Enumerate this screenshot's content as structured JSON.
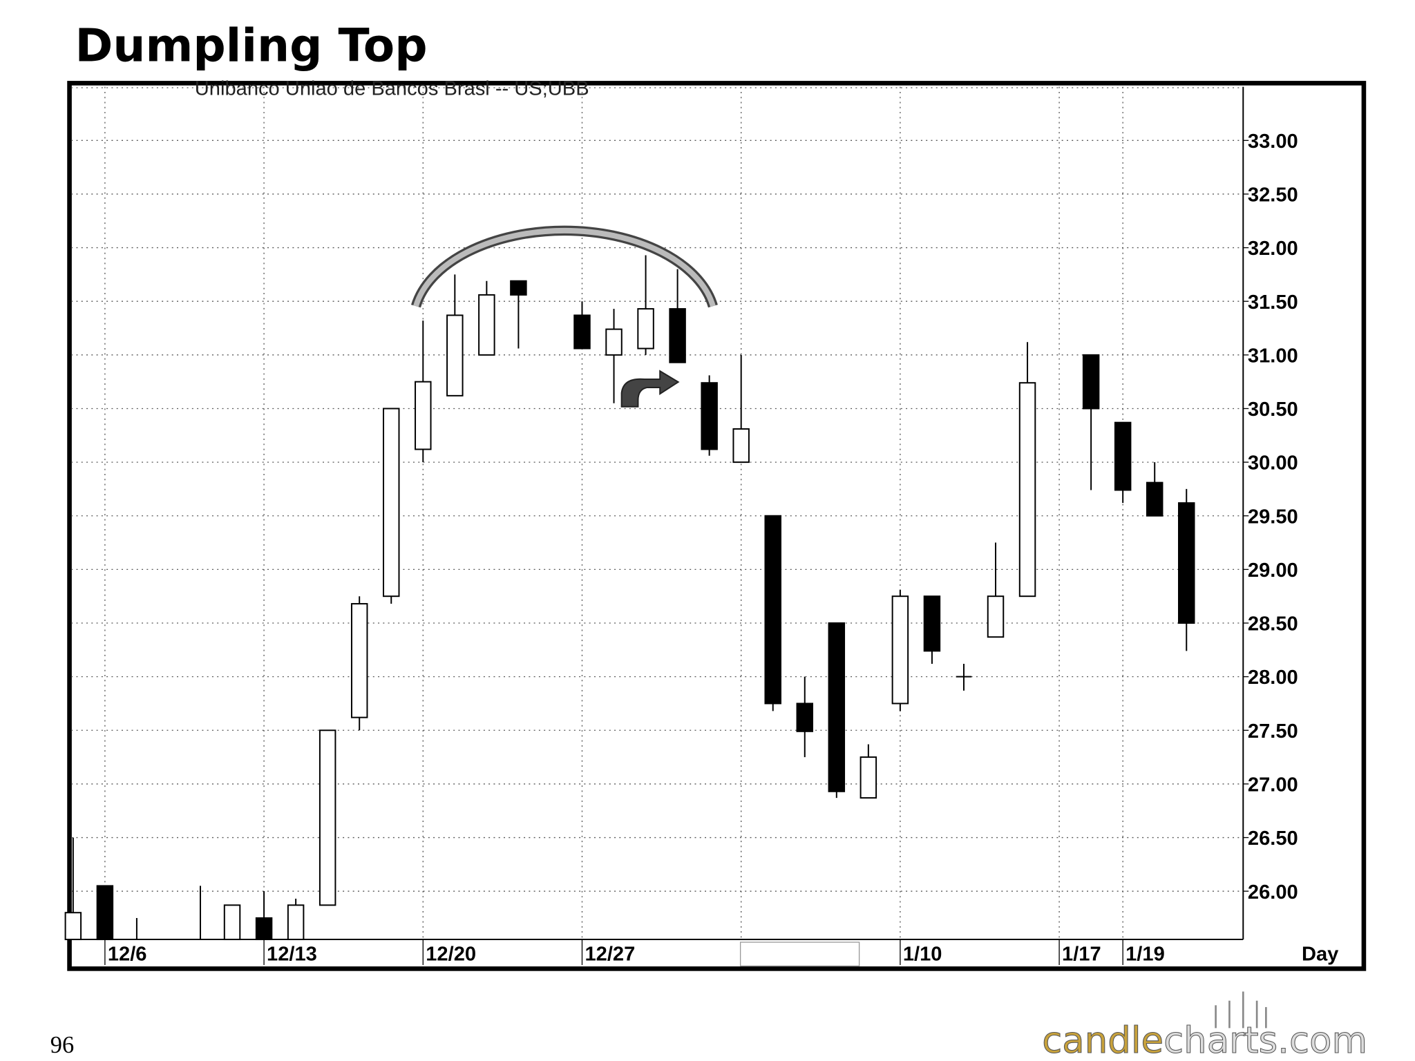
{
  "page_number": "96",
  "logo": {
    "part1": "candle",
    "part2": "charts.com"
  },
  "chart_data": {
    "type": "candlestick",
    "title": "Dumpling Top",
    "subtitle": "Unibanco Uniao de Bancos Brasl -- US;UBB",
    "x_label": "Day",
    "categories": [
      null,
      "12/6",
      null,
      null,
      null,
      null,
      "12/13",
      null,
      null,
      null,
      null,
      "12/20",
      null,
      null,
      null,
      null,
      "12/27",
      null,
      null,
      null,
      null,
      null,
      null,
      null,
      null,
      null,
      "1/10",
      null,
      null,
      null,
      null,
      "1/17",
      null,
      "1/19",
      null,
      null
    ],
    "open": [
      25.55,
      26.05,
      25.55,
      null,
      25.55,
      25.55,
      25.75,
      25.55,
      25.87,
      27.62,
      28.75,
      30.12,
      30.62,
      31.0,
      31.69,
      null,
      31.37,
      31.0,
      31.06,
      31.43,
      30.74,
      30.0,
      29.5,
      27.75,
      28.5,
      26.87,
      27.75,
      28.75,
      28.0,
      28.37,
      28.75,
      null,
      31.0,
      30.37,
      29.81,
      29.62
    ],
    "high": [
      26.5,
      26.05,
      25.75,
      null,
      26.05,
      25.87,
      26.0,
      25.93,
      27.5,
      28.75,
      30.5,
      31.32,
      31.75,
      31.69,
      31.69,
      null,
      31.5,
      31.43,
      31.93,
      31.8,
      30.81,
      31.0,
      29.5,
      28.0,
      28.5,
      27.37,
      28.81,
      28.75,
      28.12,
      29.25,
      31.12,
      null,
      31.0,
      30.37,
      30.0,
      29.75
    ],
    "low": [
      25.55,
      25.55,
      25.55,
      null,
      25.55,
      25.55,
      25.55,
      25.55,
      25.87,
      27.5,
      28.68,
      30.0,
      30.62,
      31.0,
      31.06,
      null,
      31.06,
      30.55,
      31.0,
      30.93,
      30.06,
      30.0,
      27.68,
      27.25,
      26.87,
      26.87,
      27.68,
      28.12,
      27.87,
      28.37,
      28.75,
      null,
      29.74,
      29.62,
      29.5,
      28.24
    ],
    "close": [
      25.8,
      25.55,
      25.55,
      null,
      25.55,
      25.87,
      25.55,
      25.87,
      27.5,
      28.68,
      30.5,
      30.75,
      31.37,
      31.56,
      31.56,
      null,
      31.06,
      31.24,
      31.43,
      30.93,
      30.12,
      30.31,
      27.75,
      27.49,
      26.93,
      27.25,
      28.75,
      28.24,
      28.0,
      28.75,
      30.74,
      null,
      30.5,
      29.74,
      29.5,
      28.5
    ],
    "ylim": [
      25.55,
      33.5
    ],
    "yticks": [
      {
        "value": 26,
        "label": "26.00"
      },
      {
        "value": 26.5,
        "label": "26.50"
      },
      {
        "value": 27,
        "label": "27.00"
      },
      {
        "value": 27.5,
        "label": "27.50"
      },
      {
        "value": 28,
        "label": "28.00"
      },
      {
        "value": 28.5,
        "label": "28.50"
      },
      {
        "value": 29,
        "label": "29.00"
      },
      {
        "value": 29.5,
        "label": "29.50"
      },
      {
        "value": 30,
        "label": "30.00"
      },
      {
        "value": 30.5,
        "label": "30.50"
      },
      {
        "value": 31,
        "label": "31.00"
      },
      {
        "value": 31.5,
        "label": "31.50"
      },
      {
        "value": 32,
        "label": "32.00"
      },
      {
        "value": 32.5,
        "label": "32.50"
      },
      {
        "value": 33,
        "label": "33.00"
      }
    ],
    "grid": true
  }
}
